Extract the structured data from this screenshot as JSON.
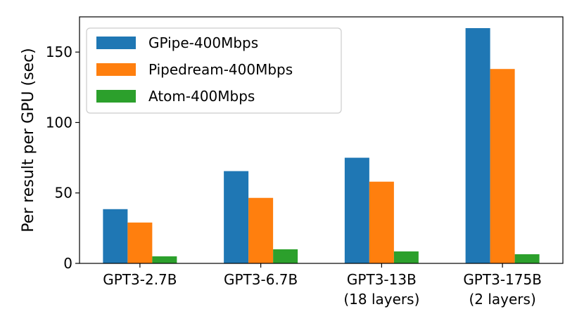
{
  "chart_data": {
    "type": "bar",
    "categories": [
      [
        "GPT3-2.7B"
      ],
      [
        "GPT3-6.7B"
      ],
      [
        "GPT3-13B",
        "(18 layers)"
      ],
      [
        "GPT3-175B",
        "(2 layers)"
      ]
    ],
    "series": [
      {
        "name": "GPipe-400Mbps",
        "color": "#1f77b4",
        "values": [
          38.5,
          65.5,
          75,
          167
        ]
      },
      {
        "name": "Pipedream-400Mbps",
        "color": "#ff7f0e",
        "values": [
          29,
          46.5,
          58,
          138
        ]
      },
      {
        "name": "Atom-400Mbps",
        "color": "#2ca02c",
        "values": [
          5,
          10,
          8.5,
          6.5
        ]
      }
    ],
    "ylabel": "Per result per GPU (sec)",
    "xlabel": "",
    "ylim": [
      0,
      175
    ],
    "yticks": [
      0,
      50,
      100,
      150
    ],
    "grid": false,
    "legend_position": "top-left"
  }
}
